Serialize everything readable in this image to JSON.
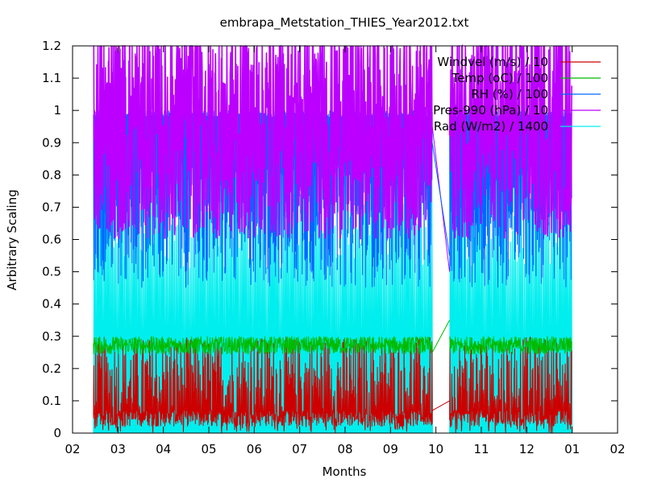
{
  "chart_data": {
    "type": "line",
    "title": "embrapa_Metstation_THIES_Year2012.txt",
    "xlabel": "Months",
    "ylabel": "Arbitrary Scaling",
    "x_tick_labels": [
      "02",
      "03",
      "04",
      "05",
      "06",
      "07",
      "08",
      "09",
      "10",
      "11",
      "12",
      "01",
      "02"
    ],
    "y_tick_labels": [
      "0",
      "0.1",
      "0.2",
      "0.3",
      "0.4",
      "0.5",
      "0.6",
      "0.7",
      "0.8",
      "0.9",
      "1",
      "1.1",
      "1.2"
    ],
    "ylim": [
      0,
      1.2
    ],
    "xlim_months": [
      0,
      12
    ],
    "grid": false,
    "legend_placement": "top-right",
    "data_segments_months": [
      [
        0.46,
        7.92
      ],
      [
        8.3,
        10.99
      ]
    ],
    "series": [
      {
        "name": "Windvel (m/s) / 10",
        "color": "#cc0000",
        "typical_range": [
          0.0,
          0.3
        ]
      },
      {
        "name": "Temp (oC) / 100",
        "color": "#00bb00",
        "typical_range": [
          0.22,
          0.3
        ]
      },
      {
        "name": "RH (%) / 100",
        "color": "#0066ff",
        "typical_range": [
          0.45,
          1.0
        ]
      },
      {
        "name": "Pres-990 (hPa) / 10",
        "color": "#bb00ff",
        "typical_range": [
          0.6,
          1.2
        ]
      },
      {
        "name": "Rad (W/m2) / 1400",
        "color": "#00eeee",
        "typical_range": [
          0.0,
          0.85
        ]
      }
    ]
  }
}
